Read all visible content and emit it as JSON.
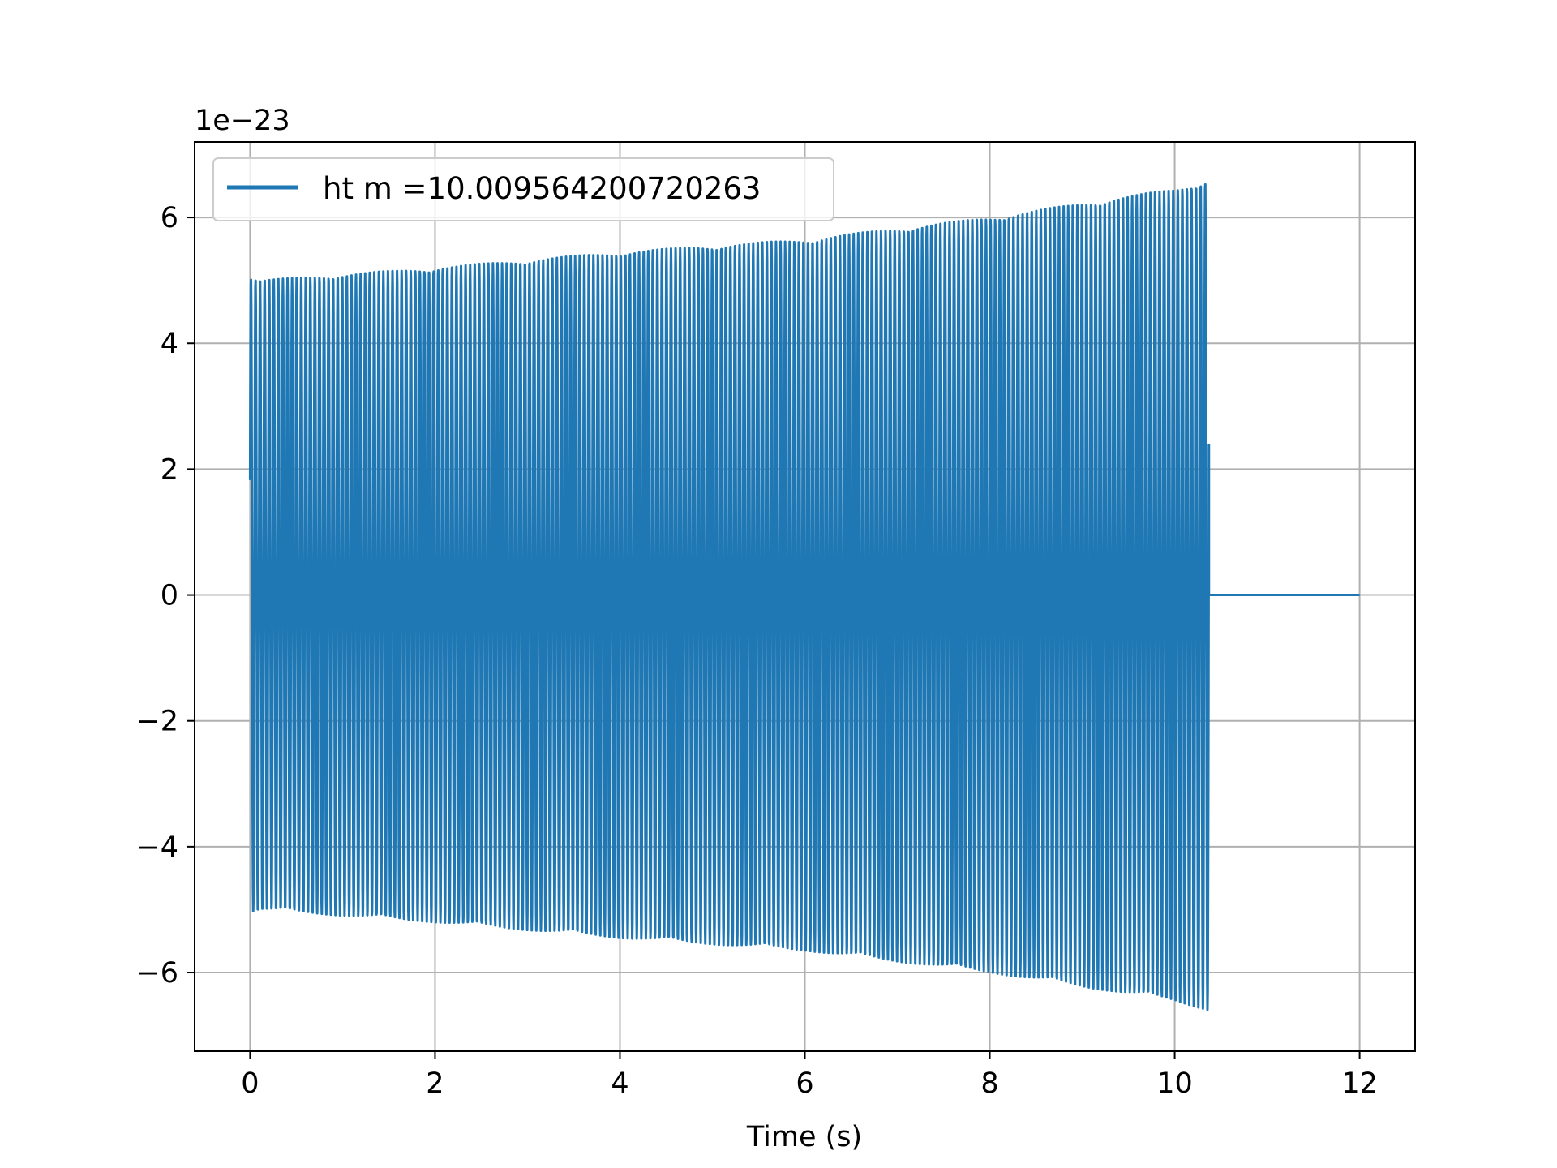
{
  "chart_data": {
    "type": "line",
    "title": "",
    "xlabel": "Time (s)",
    "ylabel": "",
    "y_offset_label": "1e−23",
    "xlim": [
      -0.6,
      12.6
    ],
    "ylim": [
      -7.25,
      7.2
    ],
    "xticks": [
      0,
      2,
      4,
      6,
      8,
      10,
      12
    ],
    "xtick_labels": [
      "0",
      "2",
      "4",
      "6",
      "8",
      "10",
      "12"
    ],
    "yticks": [
      -6,
      -4,
      -2,
      0,
      2,
      4,
      6
    ],
    "ytick_labels": [
      "−6",
      "−4",
      "−2",
      "0",
      "2",
      "4",
      "6"
    ],
    "grid": true,
    "legend_position": "upper left",
    "series": [
      {
        "name": "ht m =10.009564200720263",
        "color": "#1f77b4",
        "signal_start_s": 0,
        "signal_end_s": 10.37,
        "zero_until_s": 12,
        "oscillation_cycles": 210,
        "envelope": {
          "t": [
            0,
            0.1,
            2,
            4,
            6,
            8,
            10,
            10.37
          ],
          "amplitude": [
            5.05,
            5.0,
            5.2,
            5.45,
            5.65,
            6.0,
            6.45,
            6.6
          ]
        }
      }
    ]
  }
}
